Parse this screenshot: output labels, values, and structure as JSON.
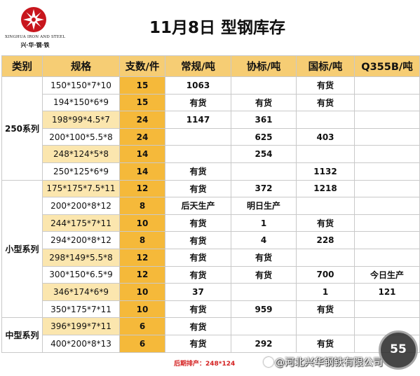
{
  "header": {
    "logo_en": "XINGHUA IRON AND STEEL",
    "logo_cn": "兴·华·钢·铁",
    "title": "11月8日 型钢库存"
  },
  "table": {
    "columns": [
      "类别",
      "规格",
      "支数/件",
      "常规/吨",
      "协标/吨",
      "国标/吨",
      "Q355B/吨"
    ],
    "groups": [
      {
        "name": "250系列",
        "rows": [
          {
            "spec": "150*150*7*10",
            "qty": "15",
            "changgui": "1063",
            "xiebiao": "",
            "guobiao": "有货",
            "q355b": ""
          },
          {
            "spec": "194*150*6*9",
            "qty": "15",
            "changgui": "有货",
            "xiebiao": "有货",
            "guobiao": "有货",
            "q355b": ""
          },
          {
            "spec": "198*99*4.5*7",
            "qty": "24",
            "changgui": "1147",
            "xiebiao": "361",
            "guobiao": "",
            "q355b": ""
          },
          {
            "spec": "200*100*5.5*8",
            "qty": "24",
            "changgui": "",
            "xiebiao": "625",
            "guobiao": "403",
            "q355b": ""
          },
          {
            "spec": "248*124*5*8",
            "qty": "14",
            "changgui": "",
            "xiebiao": "254",
            "guobiao": "",
            "q355b": ""
          },
          {
            "spec": "250*125*6*9",
            "qty": "14",
            "changgui": "有货",
            "xiebiao": "",
            "guobiao": "1132",
            "q355b": ""
          }
        ]
      },
      {
        "name": "小型系列",
        "rows": [
          {
            "spec": "175*175*7.5*11",
            "qty": "12",
            "changgui": "有货",
            "xiebiao": "372",
            "guobiao": "1218",
            "q355b": ""
          },
          {
            "spec": "200*200*8*12",
            "qty": "8",
            "changgui": "后天生产",
            "xiebiao": "明日生产",
            "guobiao": "",
            "q355b": ""
          },
          {
            "spec": "244*175*7*11",
            "qty": "10",
            "changgui": "有货",
            "xiebiao": "1",
            "guobiao": "有货",
            "q355b": ""
          },
          {
            "spec": "294*200*8*12",
            "qty": "8",
            "changgui": "有货",
            "xiebiao": "4",
            "guobiao": "228",
            "q355b": ""
          },
          {
            "spec": "298*149*5.5*8",
            "qty": "12",
            "changgui": "有货",
            "xiebiao": "有货",
            "guobiao": "",
            "q355b": ""
          },
          {
            "spec": "300*150*6.5*9",
            "qty": "12",
            "changgui": "有货",
            "xiebiao": "有货",
            "guobiao": "700",
            "q355b": "今日生产"
          },
          {
            "spec": "346*174*6*9",
            "qty": "10",
            "changgui": "37",
            "xiebiao": "",
            "guobiao": "1",
            "q355b": "121"
          },
          {
            "spec": "350*175*7*11",
            "qty": "10",
            "changgui": "有货",
            "xiebiao": "959",
            "guobiao": "有货",
            "q355b": ""
          }
        ]
      },
      {
        "name": "中型系列",
        "rows": [
          {
            "spec": "396*199*7*11",
            "qty": "6",
            "changgui": "有货",
            "xiebiao": "",
            "guobiao": "",
            "q355b": ""
          },
          {
            "spec": "400*200*8*13",
            "qty": "6",
            "changgui": "有货",
            "xiebiao": "292",
            "guobiao": "有货",
            "q355b": ""
          }
        ]
      }
    ]
  },
  "footer": {
    "note": "后期排产：248*124",
    "watermark": "@河北兴华钢铁有限公司",
    "badge": "55"
  },
  "colors": {
    "header_fill": "#f6cd74",
    "spec_highlight": "#fbe6ae",
    "qty_fill": "#f5b93a",
    "production_red": "#d42020"
  }
}
